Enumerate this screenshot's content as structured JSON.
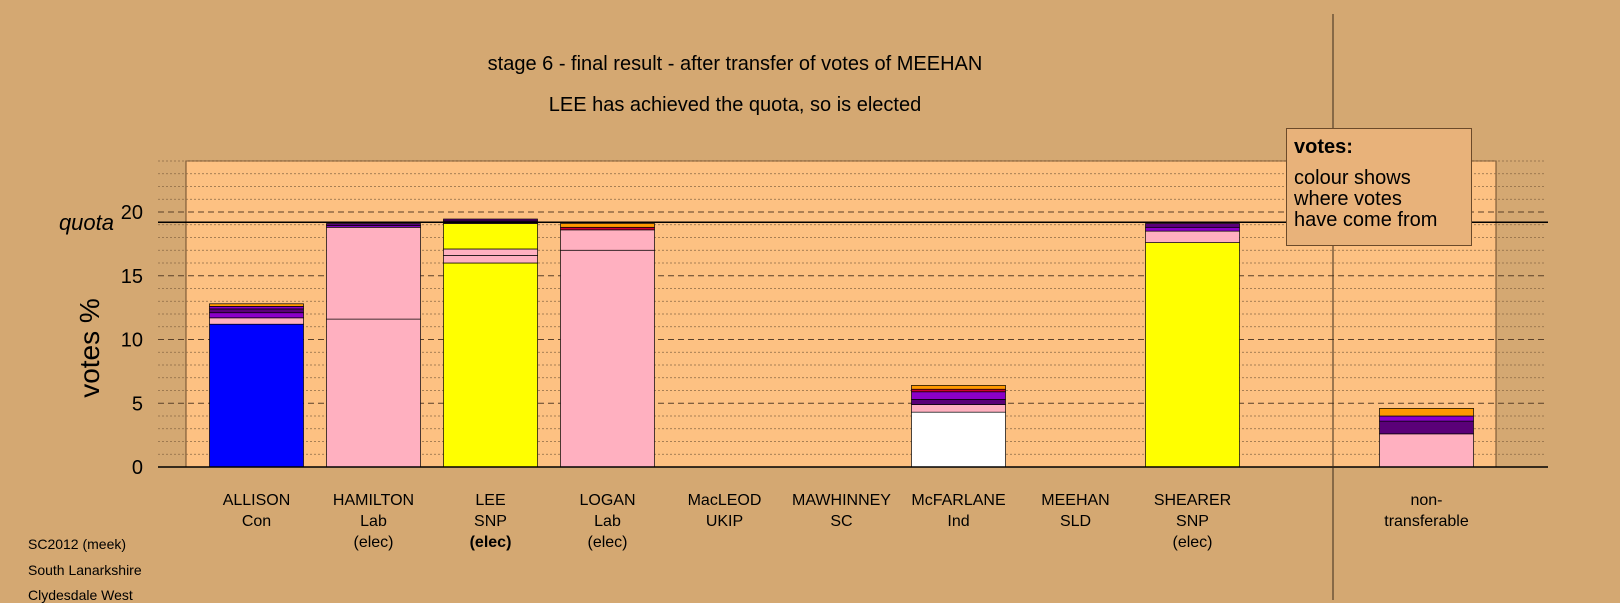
{
  "titles": {
    "line1": "stage 6 - final result - after transfer of votes of MEEHAN",
    "line2": "LEE has achieved the quota, so is elected"
  },
  "legend": {
    "heading": "votes:",
    "line1": "colour shows",
    "line2": "where votes",
    "line3": "have come from"
  },
  "footer": {
    "line1": "SC2012 (meek)",
    "line2": "South Lanarkshire",
    "line3": "Clydesdale West"
  },
  "colors": {
    "background": "#d4a872",
    "plot_bg": "#fdc182",
    "Con": "#0000ff",
    "Lab": "#ffb0c0",
    "SNP": "#ffff00",
    "Ind": "#ffffff",
    "purple": "#8b00c8",
    "darkpurple": "#5a0078",
    "orange": "#ff9900",
    "red": "#cc0033"
  },
  "chart_data": {
    "type": "bar",
    "stacked": true,
    "title": "stage 6 - final result - after transfer of votes of MEEHAN",
    "subtitle": "LEE has achieved the quota, so is elected",
    "ylabel": "votes %",
    "ylim": [
      0,
      24
    ],
    "yticks": [
      0,
      5,
      10,
      15,
      20
    ],
    "quota": 19.2,
    "quota_label": "quota",
    "categories": [
      {
        "name": "ALLISON",
        "party": "Con",
        "status": ""
      },
      {
        "name": "HAMILTON",
        "party": "Lab",
        "status": "(elec)"
      },
      {
        "name": "LEE",
        "party": "SNP",
        "status": "(elec)"
      },
      {
        "name": "LOGAN",
        "party": "Lab",
        "status": "(elec)"
      },
      {
        "name": "MacLEOD",
        "party": "UKIP",
        "status": ""
      },
      {
        "name": "MAWHINNEY",
        "party": "SC",
        "status": ""
      },
      {
        "name": "McFARLANE",
        "party": "Ind",
        "status": ""
      },
      {
        "name": "MEEHAN",
        "party": "SLD",
        "status": ""
      },
      {
        "name": "SHEARER",
        "party": "SNP",
        "status": "(elec)"
      },
      {
        "name": "non-",
        "party": "transferable",
        "status": ""
      }
    ],
    "stacks": [
      [
        {
          "v": 11.2,
          "c": "Con"
        },
        {
          "v": 0.5,
          "c": "Lab"
        },
        {
          "v": 0.4,
          "c": "purple"
        },
        {
          "v": 0.3,
          "c": "darkpurple"
        },
        {
          "v": 0.2,
          "c": "purple"
        },
        {
          "v": 0.2,
          "c": "orange"
        }
      ],
      [
        {
          "v": 11.6,
          "c": "Lab"
        },
        {
          "v": 7.2,
          "c": "Lab"
        },
        {
          "v": 0.15,
          "c": "purple"
        },
        {
          "v": 0.15,
          "c": "darkpurple"
        }
      ],
      [
        {
          "v": 16.0,
          "c": "SNP"
        },
        {
          "v": 0.6,
          "c": "Lab"
        },
        {
          "v": 0.5,
          "c": "Lab"
        },
        {
          "v": 2.0,
          "c": "SNP"
        },
        {
          "v": 0.2,
          "c": "purple"
        },
        {
          "v": 0.15,
          "c": "darkpurple"
        }
      ],
      [
        {
          "v": 17.0,
          "c": "Lab"
        },
        {
          "v": 1.6,
          "c": "Lab"
        },
        {
          "v": 0.2,
          "c": "red"
        },
        {
          "v": 0.3,
          "c": "orange"
        }
      ],
      [],
      [],
      [
        {
          "v": 4.3,
          "c": "Ind"
        },
        {
          "v": 0.6,
          "c": "Lab"
        },
        {
          "v": 0.4,
          "c": "darkpurple"
        },
        {
          "v": 0.6,
          "c": "purple"
        },
        {
          "v": 0.2,
          "c": "red"
        },
        {
          "v": 0.3,
          "c": "orange"
        }
      ],
      [],
      [
        {
          "v": 17.6,
          "c": "SNP"
        },
        {
          "v": 0.9,
          "c": "Lab"
        },
        {
          "v": 0.3,
          "c": "purple"
        },
        {
          "v": 0.3,
          "c": "darkpurple"
        }
      ],
      [
        {
          "v": 2.6,
          "c": "Lab"
        },
        {
          "v": 1.0,
          "c": "darkpurple"
        },
        {
          "v": 0.4,
          "c": "purple"
        },
        {
          "v": 0.6,
          "c": "orange"
        }
      ]
    ]
  }
}
